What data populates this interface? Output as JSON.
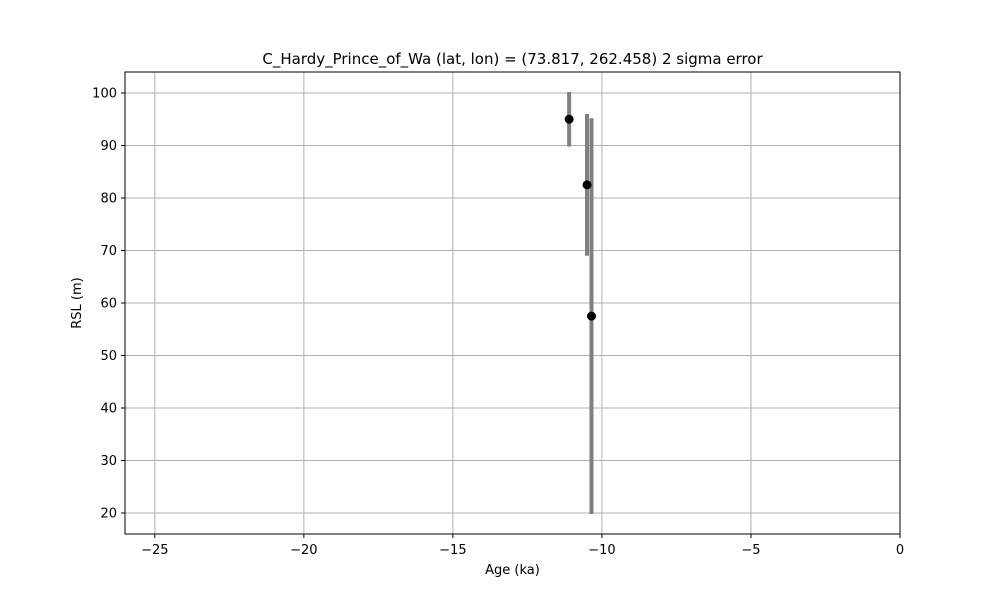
{
  "chart_data": {
    "type": "scatter",
    "title": "C_Hardy_Prince_of_Wa (lat, lon) = (73.817, 262.458)  2 sigma error",
    "xlabel": "Age (ka)",
    "ylabel": "RSL (m)",
    "xlim": [
      -26,
      0
    ],
    "ylim": [
      16,
      104
    ],
    "xticks": [
      -25,
      -20,
      -15,
      -10,
      -5,
      0
    ],
    "xtick_labels": [
      "−25",
      "−20",
      "−15",
      "−10",
      "−5",
      "0"
    ],
    "yticks": [
      20,
      30,
      40,
      50,
      60,
      70,
      80,
      90,
      100
    ],
    "ytick_labels": [
      "20",
      "30",
      "40",
      "50",
      "60",
      "70",
      "80",
      "90",
      "100"
    ],
    "grid": true,
    "legend": "none",
    "colors": {
      "marker": "#000000",
      "errorbar": "#808080",
      "grid": "#b0b0b0"
    },
    "points": [
      {
        "x": -11.1,
        "y": 95.0,
        "y_err_low": 89.8,
        "y_err_high": 100.2
      },
      {
        "x": -10.5,
        "y": 82.5,
        "y_err_low": 69.0,
        "y_err_high": 96.0
      },
      {
        "x": -10.35,
        "y": 57.5,
        "y_err_low": 19.8,
        "y_err_high": 95.2
      }
    ]
  }
}
